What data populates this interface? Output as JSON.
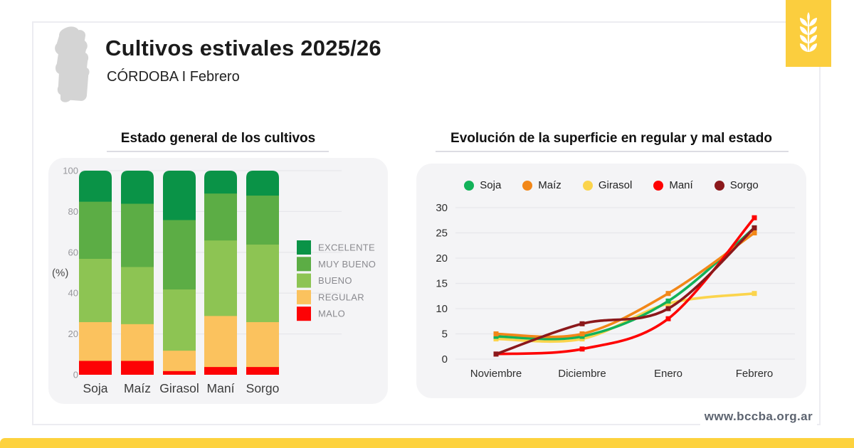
{
  "header": {
    "title": "Cultivos estivales 2025/26",
    "subtitle": "CÓRDOBA I Febrero"
  },
  "footer": {
    "website": "www.bccba.org.ar"
  },
  "icons": {
    "corner": "wheat-icon",
    "map": "cordoba-province-silhouette"
  },
  "colors": {
    "accent_yellow": "#FBCE3E",
    "bottom_bar_yellow": "#FDD23E",
    "map_gray": "#D4D4D4",
    "panel_bg": "#F4F4F6",
    "excelente": "#0A9347",
    "muy_bueno": "#5CAD45",
    "bueno": "#8DC453",
    "regular": "#FBC25E",
    "malo": "#FD0205",
    "line_soja": "#12B259",
    "line_maiz": "#F28718",
    "line_girasol": "#FBD44C",
    "line_mani": "#FE0202",
    "line_sorgo": "#8B181B"
  },
  "chart_data": [
    {
      "type": "bar",
      "stacked": true,
      "title": "Estado general de los cultivos",
      "categories": [
        "Soja",
        "Maíz",
        "Girasol",
        "Maní",
        "Sorgo"
      ],
      "series": [
        {
          "name": "MALO",
          "color_key": "malo",
          "values": [
            7,
            7,
            2,
            4,
            4
          ]
        },
        {
          "name": "REGULAR",
          "color_key": "regular",
          "values": [
            19,
            18,
            10,
            25,
            22
          ]
        },
        {
          "name": "BUENO",
          "color_key": "bueno",
          "values": [
            31,
            28,
            30,
            37,
            38
          ]
        },
        {
          "name": "MUY BUENO",
          "color_key": "muy_bueno",
          "values": [
            28,
            31,
            34,
            23,
            24
          ]
        },
        {
          "name": "EXCELENTE",
          "color_key": "excelente",
          "values": [
            15,
            16,
            24,
            11,
            12
          ]
        }
      ],
      "ylabel": "(%)",
      "yticks": [
        0,
        20,
        40,
        60,
        80,
        100
      ],
      "ylim": [
        0,
        100
      ],
      "legend_position": "right",
      "legend_order_top_to_bottom": [
        "EXCELENTE",
        "MUY BUENO",
        "BUENO",
        "REGULAR",
        "MALO"
      ]
    },
    {
      "type": "line",
      "title": "Evolución de la superficie en regular y mal estado",
      "x": [
        "Noviembre",
        "Diciembre",
        "Enero",
        "Febrero"
      ],
      "series": [
        {
          "name": "Soja",
          "color_key": "line_soja",
          "values": [
            4.5,
            4.5,
            11.5,
            26
          ]
        },
        {
          "name": "Maíz",
          "color_key": "line_maiz",
          "values": [
            5,
            5,
            13,
            25
          ]
        },
        {
          "name": "Girasol",
          "color_key": "line_girasol",
          "values": [
            4,
            4,
            11,
            13
          ]
        },
        {
          "name": "Maní",
          "color_key": "line_mani",
          "values": [
            1,
            2,
            8,
            28
          ]
        },
        {
          "name": "Sorgo",
          "color_key": "line_sorgo",
          "values": [
            1,
            7,
            10,
            26
          ]
        }
      ],
      "yticks": [
        0,
        5,
        10,
        15,
        20,
        25,
        30
      ],
      "ylim": [
        0,
        30
      ],
      "grid": true,
      "legend_position": "top"
    }
  ]
}
